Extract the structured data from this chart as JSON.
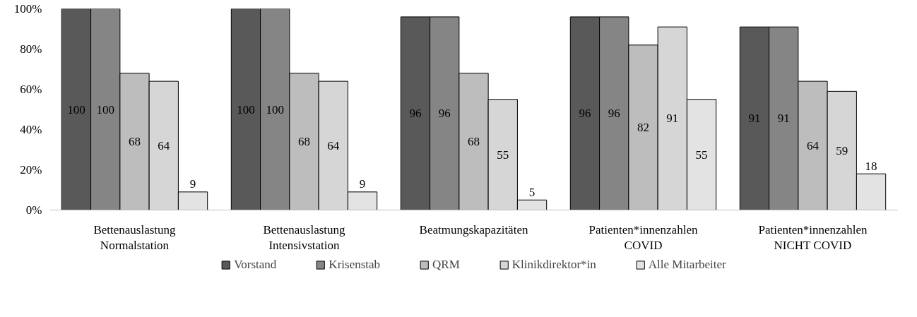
{
  "chart_data": {
    "type": "bar",
    "categories": [
      "Bettenauslastung\nNormalstation",
      "Bettenauslastung\nIntensivstation",
      "Beatmungskapazitäten",
      "Patienten*innenzahlen\nCOVID",
      "Patienten*innenzahlen\nNICHT COVID"
    ],
    "series": [
      {
        "name": "Vorstand",
        "color": "#595959",
        "values": [
          100,
          100,
          96,
          96,
          91
        ]
      },
      {
        "name": "Krisenstab",
        "color": "#858585",
        "values": [
          100,
          100,
          96,
          96,
          91
        ]
      },
      {
        "name": "QRM",
        "color": "#bdbdbd",
        "values": [
          68,
          68,
          68,
          82,
          64
        ]
      },
      {
        "name": "Klinikdirektor*in",
        "color": "#d6d6d6",
        "values": [
          64,
          64,
          55,
          91,
          59
        ]
      },
      {
        "name": "Alle Mitarbeiter",
        "color": "#e3e3e3",
        "values": [
          9,
          9,
          5,
          55,
          18
        ]
      }
    ],
    "ylim": [
      0,
      100
    ],
    "yticks": [
      {
        "value": 0,
        "label": "0%"
      },
      {
        "value": 20,
        "label": "20%"
      },
      {
        "value": 40,
        "label": "40%"
      },
      {
        "value": 60,
        "label": "60%"
      },
      {
        "value": 80,
        "label": "80%"
      },
      {
        "value": 100,
        "label": "100%"
      }
    ],
    "data_labels": true,
    "legend": "bottom",
    "grid": false
  }
}
